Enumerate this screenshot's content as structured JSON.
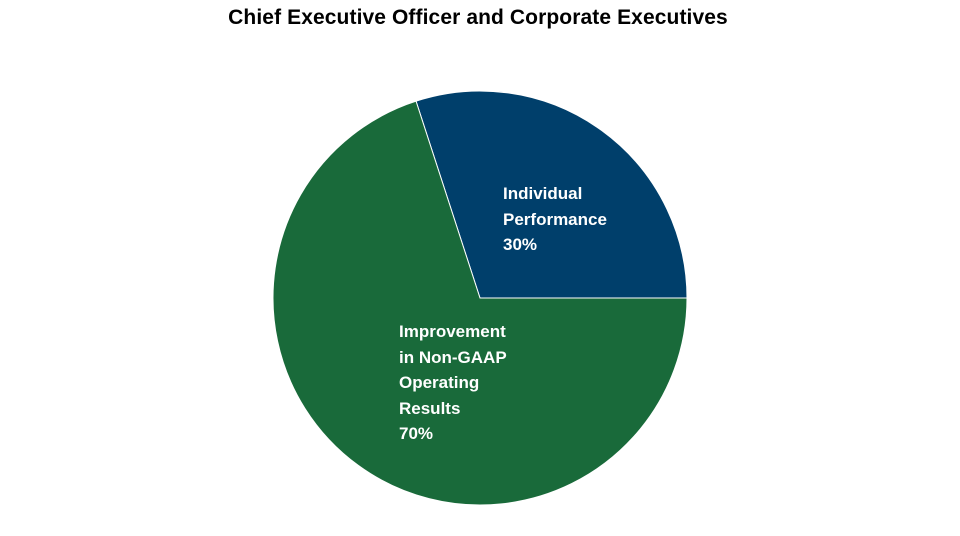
{
  "chart_data": {
    "type": "pie",
    "title": "Chief Executive Officer and Corporate Executives",
    "slices": [
      {
        "label_lines": [
          "Individual",
          "Performance"
        ],
        "value_label": "30%",
        "value": 30,
        "color": "#003f6b"
      },
      {
        "label_lines": [
          "Improvement",
          "in Non-GAAP",
          "Operating",
          "Results"
        ],
        "value_label": "70%",
        "value": 70,
        "color": "#196a3a"
      }
    ]
  }
}
